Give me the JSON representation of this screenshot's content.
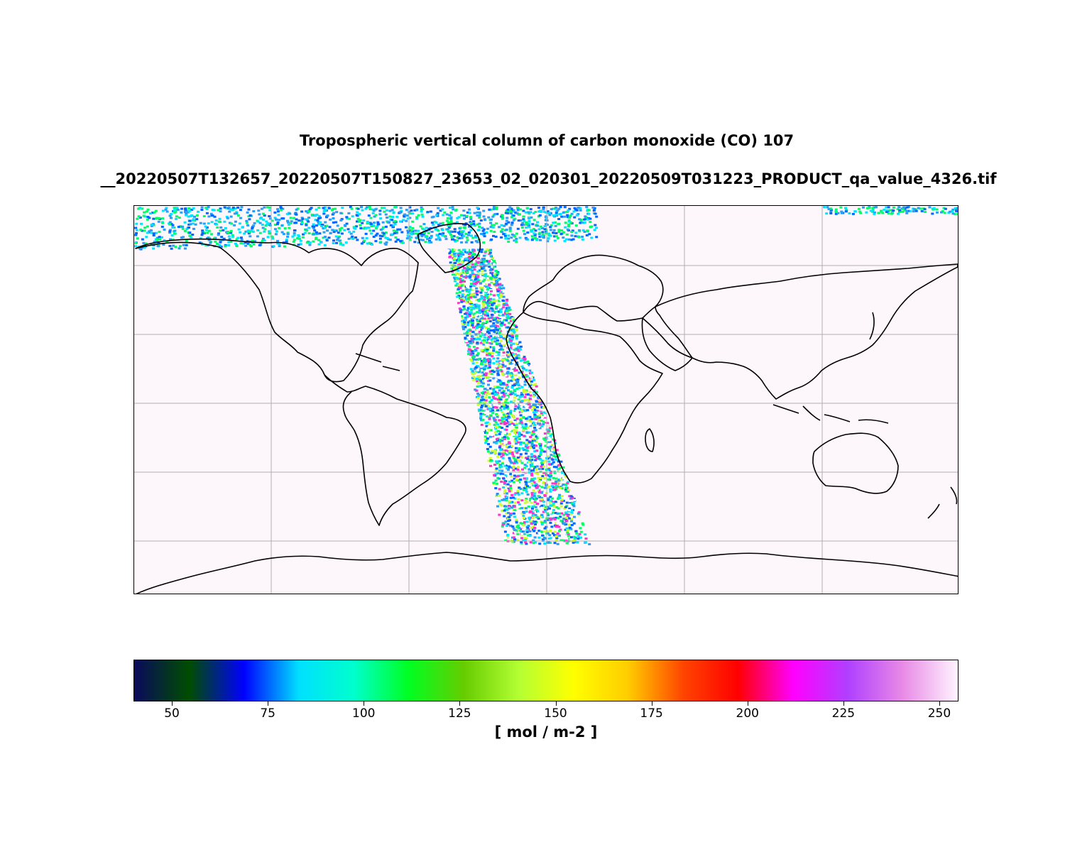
{
  "title_line1": "Tropospheric vertical column of carbon monoxide (CO) 107",
  "title_line2": "__20220507T132657_20220507T150827_23653_02_020301_20220509T031223_PRODUCT_qa_value_4326.tif",
  "map": {
    "projection": "equirectangular",
    "lon_range": [
      -180,
      180
    ],
    "lat_range": [
      -90,
      80
    ],
    "gridlines": true,
    "background_color": "#fdf6fb",
    "coastline_color": "#000000",
    "swath_colors": [
      "#0066ff",
      "#00e5ff",
      "#00ff66",
      "#2a9df4",
      "#ffffff",
      "#ff33cc",
      "#ccff33"
    ]
  },
  "colorbar": {
    "label": "[ mol / m-2 ]",
    "range": [
      40,
      255
    ],
    "ticks": [
      "50",
      "75",
      "100",
      "125",
      "150",
      "175",
      "200",
      "225",
      "250"
    ],
    "tick_values": [
      50,
      75,
      100,
      125,
      150,
      175,
      200,
      225,
      250
    ],
    "colormap": "gist_ncar",
    "stops": [
      "#0a0a5c",
      "#004d00",
      "#0000ff",
      "#00e0ff",
      "#00ffcc",
      "#00ff22",
      "#66cc00",
      "#b3ff33",
      "#ffff00",
      "#ffcc00",
      "#ff4400",
      "#ff0000",
      "#ff00ff",
      "#b040ff",
      "#e88ae6",
      "#fff4ff"
    ]
  }
}
